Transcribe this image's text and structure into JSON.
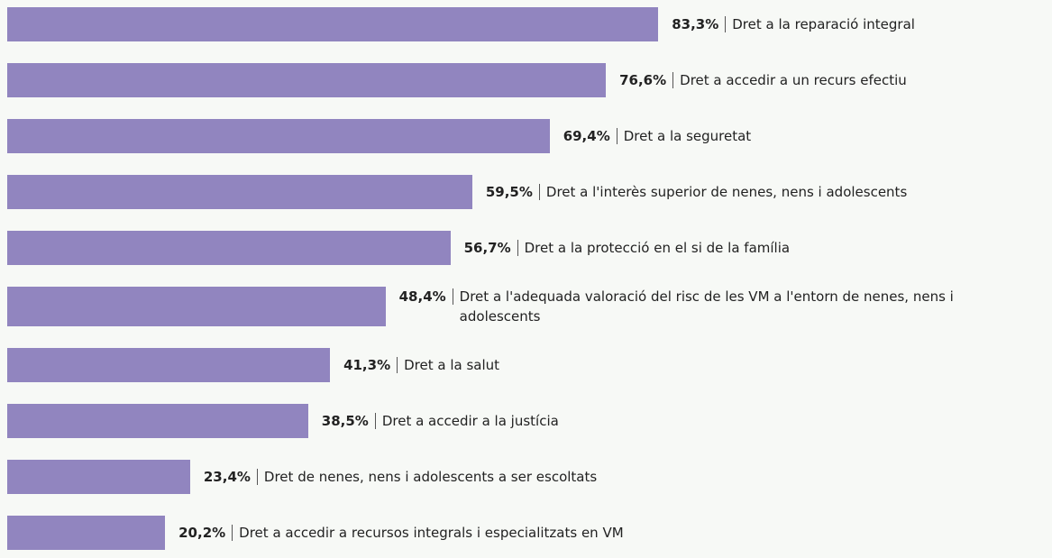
{
  "chart_data": {
    "type": "bar",
    "orientation": "horizontal",
    "categories": [
      "Dret a la reparació integral",
      "Dret a accedir a un recurs efectiu",
      "Dret a la seguretat",
      "Dret a l'interès superior de nenes, nens i adolescents",
      "Dret a la protecció en el si de la família",
      "Dret a l'adequada valoració del risc de les VM a l'entorn de nenes, nens i adolescents",
      "Dret a la salut",
      "Dret a accedir a la justícia",
      "Dret de nenes, nens i adolescents a ser escoltats",
      "Dret a accedir a recursos integrals i especialitzats en VM"
    ],
    "values": [
      83.3,
      76.6,
      69.4,
      59.5,
      56.7,
      48.4,
      41.3,
      38.5,
      23.4,
      20.2
    ],
    "value_labels": [
      "83,3%",
      "76,6%",
      "69,4%",
      "59,5%",
      "56,7%",
      "48,4%",
      "41,3%",
      "38,5%",
      "23,4%",
      "20,2%"
    ],
    "color": "#9185bf",
    "xlim": [
      0,
      100
    ]
  }
}
